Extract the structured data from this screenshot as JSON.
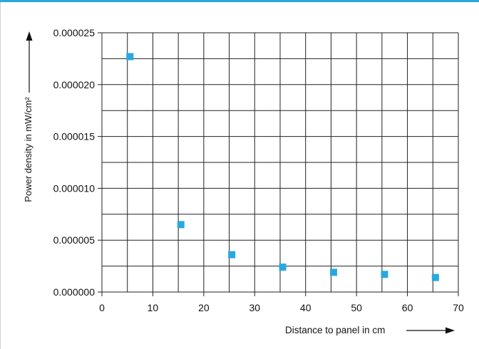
{
  "chart_data": {
    "type": "scatter",
    "xlabel": "Distance to panel in cm",
    "ylabel": "Power density in mW/cm²",
    "xlim": [
      0,
      70
    ],
    "ylim": [
      0,
      2.5e-05
    ],
    "x_ticks": [
      "0",
      "10",
      "20",
      "30",
      "40",
      "50",
      "60",
      "70"
    ],
    "y_ticks": [
      "0.000000",
      "0.000005",
      "0.000010",
      "0.000015",
      "0.000020",
      "0.000025"
    ],
    "grid": true,
    "x_minor_step": 5,
    "y_minor_step": 2.5e-06,
    "marker_color": "#29a8df",
    "points": [
      {
        "x": 5.5,
        "y": 2.27e-05
      },
      {
        "x": 15.5,
        "y": 6.5e-06
      },
      {
        "x": 25.5,
        "y": 3.6e-06
      },
      {
        "x": 35.5,
        "y": 2.4e-06
      },
      {
        "x": 45.5,
        "y": 1.9e-06
      },
      {
        "x": 55.5,
        "y": 1.7e-06
      },
      {
        "x": 65.5,
        "y": 1.4e-06
      }
    ]
  },
  "colors": {
    "accent": "#29a8df",
    "grid": "#222222",
    "frame_rule": "#d0d0d0"
  }
}
